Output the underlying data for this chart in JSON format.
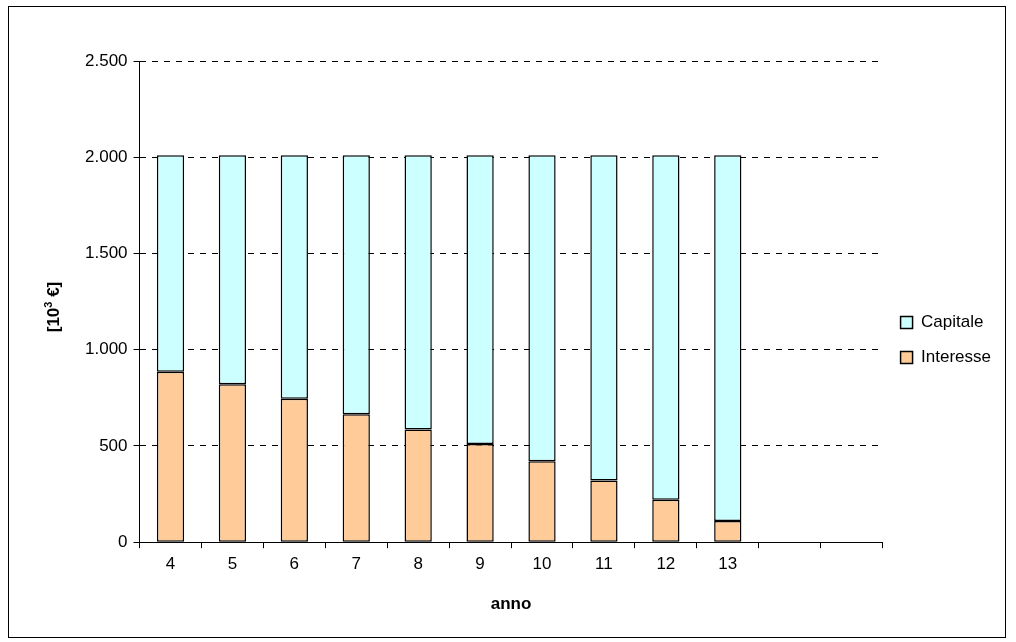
{
  "chart_data": {
    "type": "bar",
    "stacked": true,
    "xlabel": "anno",
    "ylabel": "[10$^{3}$ €]",
    "categories": [
      "4",
      "5",
      "6",
      "7",
      "8",
      "9",
      "10",
      "11",
      "12",
      "13",
      null,
      null
    ],
    "series": [
      {
        "name": "Interesse",
        "color": "#ffcc99",
        "values": [
          885,
          820,
          745,
          665,
          585,
          510,
          420,
          320,
          220,
          110,
          null,
          null
        ]
      },
      {
        "name": "Capitale",
        "color": "#ccffff",
        "values": [
          1125,
          1190,
          1265,
          1345,
          1425,
          1500,
          1590,
          1690,
          1790,
          1900,
          null,
          null
        ]
      }
    ],
    "ylim": [
      0,
      2500
    ],
    "yticks": [
      {
        "value": 0,
        "label": "0"
      },
      {
        "value": 500,
        "label": "500"
      },
      {
        "value": 1000,
        "label": "1.000"
      },
      {
        "value": 1500,
        "label": "1.500"
      },
      {
        "value": 2000,
        "label": "2.000"
      },
      {
        "value": 2500,
        "label": "2.500"
      }
    ],
    "grid": "y",
    "legend": "right"
  }
}
